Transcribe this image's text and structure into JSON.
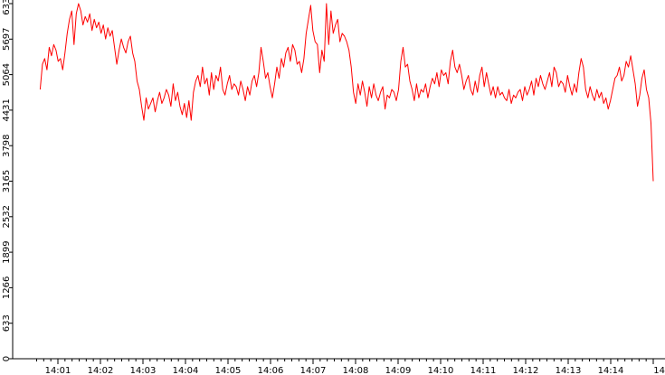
{
  "chart_data": {
    "type": "line",
    "title": "",
    "xlabel": "",
    "ylabel": "",
    "x_start": "14:00:35",
    "x_end": "14:15:00",
    "x_tick_labels": [
      "14:01",
      "14:02",
      "14:03",
      "14:04",
      "14:05",
      "14:06",
      "14:07",
      "14:08",
      "14:09",
      "14:10",
      "14:11",
      "14:12",
      "14:13",
      "14:14",
      "14"
    ],
    "ylim": [
      0,
      6330
    ],
    "y_tick_values": [
      0,
      633,
      1266,
      1899,
      2532,
      3165,
      3798,
      4431,
      5064,
      5697,
      6330
    ],
    "grid": false,
    "legend": "none",
    "series": [
      {
        "color": "#ff0000",
        "time_step_seconds": 5,
        "values": [
          4800,
          5250,
          5350,
          5150,
          5550,
          5400,
          5600,
          5500,
          5300,
          5350,
          5150,
          5450,
          5800,
          6050,
          6200,
          5600,
          6150,
          6330,
          6200,
          5950,
          6100,
          6000,
          6150,
          5850,
          6050,
          5900,
          6000,
          5800,
          5950,
          5700,
          5900,
          5750,
          5850,
          5550,
          5250,
          5500,
          5700,
          5550,
          5450,
          5650,
          5750,
          5450,
          5300,
          4950,
          4800,
          4500,
          4250,
          4650,
          4450,
          4550,
          4650,
          4400,
          4600,
          4750,
          4550,
          4650,
          4800,
          4700,
          4500,
          4900,
          4600,
          4750,
          4500,
          4350,
          4550,
          4300,
          4600,
          4250,
          4750,
          4950,
          5050,
          4850,
          5200,
          4900,
          5000,
          4700,
          5100,
          4800,
          5050,
          4950,
          5200,
          4800,
          4700,
          4900,
          5050,
          4800,
          4900,
          4850,
          4700,
          4950,
          4800,
          4600,
          4850,
          4700,
          4950,
          5050,
          4850,
          5100,
          5550,
          5300,
          5000,
          5100,
          4850,
          4650,
          4900,
          5200,
          5000,
          5350,
          5200,
          5450,
          5550,
          5300,
          5600,
          5500,
          5250,
          5300,
          5100,
          5350,
          5800,
          6050,
          6300,
          5850,
          5650,
          5600,
          5100,
          5500,
          5300,
          6330,
          5600,
          6200,
          5800,
          5950,
          6050,
          5650,
          5800,
          5750,
          5650,
          5500,
          5200,
          4750,
          4550,
          4900,
          4700,
          4950,
          4750,
          4500,
          4850,
          4650,
          4900,
          4700,
          4600,
          4750,
          4850,
          4450,
          4700,
          4650,
          4800,
          4750,
          4600,
          4800,
          5300,
          5550,
          5200,
          5250,
          4950,
          4800,
          4600,
          4900,
          4650,
          4800,
          4750,
          4900,
          4650,
          4850,
          5000,
          4900,
          5100,
          4850,
          5150,
          5050,
          5100,
          4900,
          5300,
          5500,
          5200,
          5100,
          5250,
          5050,
          4800,
          4950,
          5050,
          4800,
          4700,
          4950,
          4750,
          5050,
          5200,
          4850,
          5100,
          4900,
          4700,
          4850,
          4650,
          4850,
          4700,
          4750,
          4650,
          4600,
          4800,
          4550,
          4700,
          4650,
          4750,
          4800,
          4600,
          4850,
          4700,
          4800,
          4950,
          4700,
          5000,
          4850,
          5050,
          4900,
          4800,
          4950,
          5100,
          4850,
          5200,
          5100,
          4850,
          4950,
          4900,
          4750,
          5050,
          4850,
          4700,
          4900,
          4750,
          5100,
          5350,
          5200,
          4800,
          4650,
          4850,
          4700,
          4600,
          4800,
          4650,
          4750,
          4550,
          4650,
          4450,
          4600,
          4800,
          5000,
          5050,
          5200,
          4950,
          5050,
          5300,
          5200,
          5400,
          5150,
          4900,
          4500,
          4700,
          5000,
          5150,
          4800,
          4650,
          4200,
          3165
        ]
      }
    ]
  }
}
